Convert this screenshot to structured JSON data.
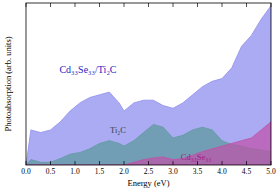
{
  "chart_data": {
    "type": "area",
    "x_label": "Energy (eV)",
    "y_label": "Photoabsorption (arb. units)",
    "x": [
      0,
      0.1,
      0.3,
      0.5,
      0.7,
      0.9,
      1.1,
      1.3,
      1.5,
      1.7,
      1.9,
      2.0,
      2.2,
      2.4,
      2.6,
      2.8,
      3.0,
      3.2,
      3.4,
      3.6,
      3.8,
      4.0,
      4.2,
      4.4,
      4.6,
      4.8,
      5.0
    ],
    "series": [
      {
        "name": "Cd₃₃Se₃₃/Ti₂C",
        "color": "#8f8fef",
        "values": [
          0,
          6.5,
          6,
          6.5,
          8,
          10,
          11.5,
          12.5,
          13,
          13.5,
          11.5,
          10,
          11.5,
          12,
          12,
          11,
          10.5,
          11.5,
          13,
          14.5,
          15.5,
          16,
          18,
          22,
          24,
          27,
          29.5
        ]
      },
      {
        "name": "Ti₂C",
        "color": "#5f9aa0",
        "values": [
          0,
          1,
          0.5,
          0.5,
          1.2,
          2,
          2.3,
          3,
          4,
          4.5,
          4,
          3.5,
          4.5,
          6,
          7.5,
          7,
          5,
          5.5,
          6.5,
          7,
          6.5,
          4.5,
          3.8,
          3.5,
          3,
          2.8,
          2.5
        ]
      },
      {
        "name": "Cd₃₃Se₃₃",
        "color": "#c050a8",
        "values": [
          0,
          0,
          0,
          0,
          0,
          0,
          0,
          0,
          0,
          0,
          0,
          0,
          0.5,
          1,
          1.3,
          1.5,
          1,
          1.2,
          1.8,
          2.5,
          3,
          3.5,
          4,
          4.5,
          5,
          6.5,
          8
        ]
      }
    ],
    "xlim": [
      0,
      5
    ],
    "ylim": [
      0,
      30
    ],
    "xticks": [
      {
        "value": 0,
        "label": "0.0"
      },
      0.5,
      {
        "value": 1,
        "label": "1.0"
      },
      1.5,
      {
        "value": 2,
        "label": "2.0"
      },
      2.5,
      {
        "value": 3,
        "label": "3.0"
      },
      3.5,
      {
        "value": 4,
        "label": "4.0"
      },
      4.5,
      {
        "value": 5,
        "label": "5.0"
      }
    ],
    "tick_labels": "x",
    "grid": false
  }
}
